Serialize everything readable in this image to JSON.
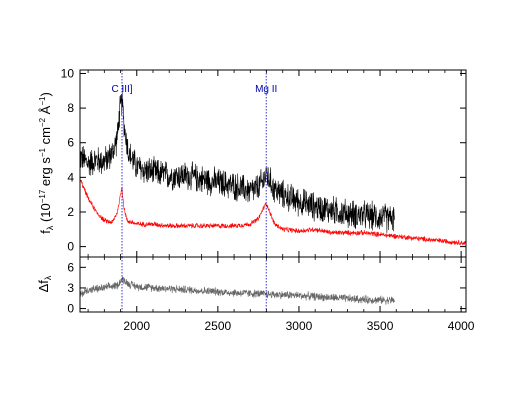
{
  "chart_data": [
    {
      "type": "line",
      "panel": "top",
      "ylabel": {
        "f": "f",
        "lambda": "λ",
        "open": " (10",
        "exp1": "−17",
        "mid": " erg s",
        "exp2": "−1",
        "mid2": " cm",
        "exp3": "−2",
        "ang": " Å",
        "exp4": "−1",
        "close": ")"
      },
      "xlim": [
        1650,
        4030
      ],
      "ylim": [
        -0.6,
        10.2
      ],
      "xticks": [
        2000,
        2500,
        3000,
        3500,
        4000
      ],
      "yticks": [
        0,
        2,
        4,
        6,
        8,
        10
      ],
      "ytick_labels": [
        "0",
        "2",
        "4",
        "6",
        "8",
        "10"
      ],
      "series": [
        {
          "color": "#000000",
          "x": [
            1650,
            1700,
            1750,
            1800,
            1850,
            1880,
            1895,
            1909,
            1925,
            1950,
            2000,
            2050,
            2100,
            2200,
            2300,
            2400,
            2500,
            2600,
            2700,
            2750,
            2780,
            2800,
            2820,
            2850,
            2900,
            3000,
            3100,
            3200,
            3300,
            3400,
            3500,
            3590
          ],
          "y": [
            5.2,
            4.8,
            5.0,
            4.9,
            5.4,
            6.3,
            7.8,
            8.4,
            6.8,
            5.4,
            4.6,
            4.4,
            4.3,
            4.1,
            4.1,
            3.9,
            3.7,
            3.5,
            3.2,
            3.4,
            3.8,
            4.2,
            3.8,
            3.3,
            3.0,
            2.6,
            2.3,
            2.1,
            1.9,
            1.8,
            1.7,
            1.6
          ],
          "noise": 1.4
        },
        {
          "color": "#ff0000",
          "x": [
            1650,
            1700,
            1750,
            1800,
            1850,
            1880,
            1900,
            1909,
            1920,
            1940,
            2000,
            2100,
            2200,
            2400,
            2600,
            2700,
            2750,
            2780,
            2800,
            2820,
            2850,
            2900,
            3000,
            3100,
            3200,
            3400,
            3600,
            3800,
            4030
          ],
          "y": [
            3.9,
            2.8,
            2.0,
            1.5,
            1.4,
            2.0,
            3.0,
            3.5,
            2.3,
            1.5,
            1.3,
            1.3,
            1.2,
            1.2,
            1.2,
            1.3,
            1.6,
            2.2,
            2.5,
            2.0,
            1.3,
            1.0,
            0.9,
            1.0,
            0.8,
            0.8,
            0.6,
            0.4,
            0.2
          ],
          "noise": 0.25
        }
      ],
      "annotations": [
        {
          "x": 1909,
          "label": "C III]"
        },
        {
          "x": 2798,
          "label": "Mg II"
        }
      ]
    },
    {
      "type": "line",
      "panel": "bottom",
      "ylabel": {
        "delta": "Δf",
        "lambda": "λ"
      },
      "xlim": [
        1650,
        4030
      ],
      "ylim": [
        -0.5,
        7.5
      ],
      "xticks": [
        2000,
        2500,
        3000,
        3500,
        4000
      ],
      "xtick_labels": [
        "2000",
        "2500",
        "3000",
        "3500",
        "4000"
      ],
      "yticks": [
        0,
        3,
        6
      ],
      "ytick_labels": [
        "0",
        "3",
        "6"
      ],
      "series": [
        {
          "color": "#666666",
          "x": [
            1650,
            1700,
            1800,
            1880,
            1909,
            1950,
            2000,
            2200,
            2400,
            2600,
            2800,
            3000,
            3200,
            3400,
            3590
          ],
          "y": [
            2.0,
            2.7,
            3.0,
            3.4,
            4.3,
            3.6,
            3.2,
            2.9,
            2.6,
            2.3,
            2.1,
            1.9,
            1.6,
            1.3,
            1.2
          ],
          "noise": 1.0
        }
      ]
    }
  ]
}
